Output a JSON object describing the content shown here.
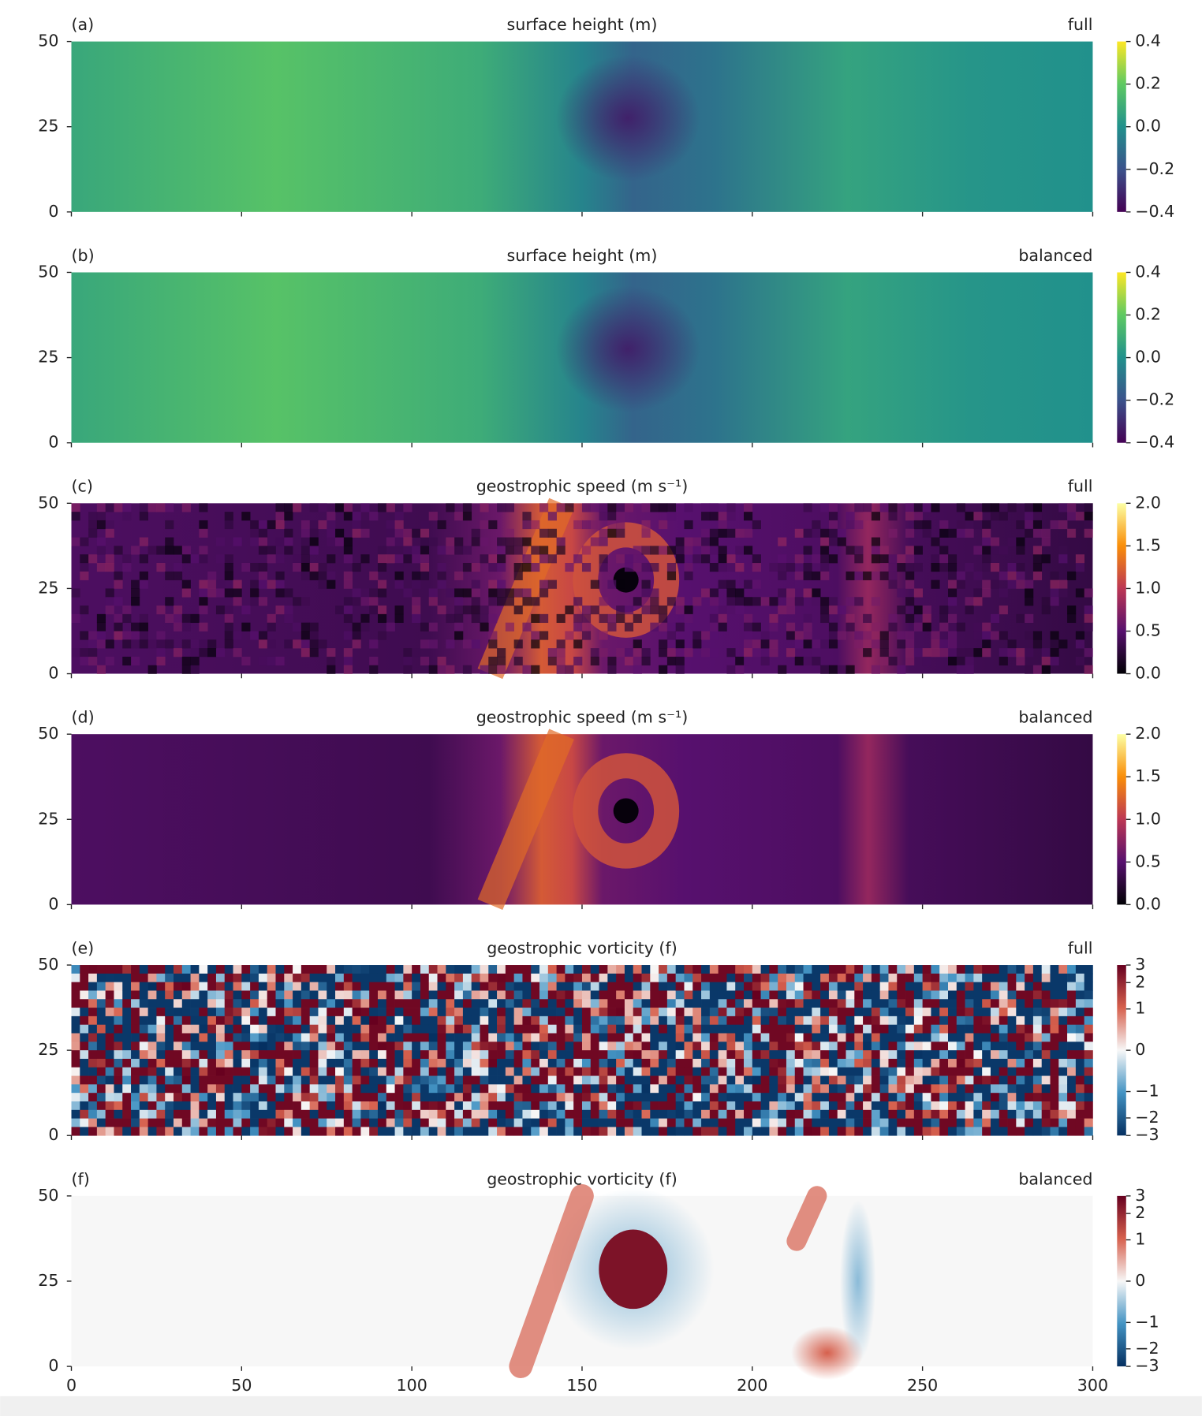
{
  "chart_data": [
    {
      "type": "heatmap",
      "panel": "(a)",
      "title": "surface height (m)",
      "variant": "full",
      "colormap": "viridis",
      "ylim": [
        0,
        50
      ],
      "yticks": [
        0,
        25,
        50
      ],
      "clim": [
        -0.4,
        0.4
      ],
      "cticks": [
        {
          "value": -0.4,
          "label": "−0.4"
        },
        {
          "value": -0.2,
          "label": "−0.2"
        },
        {
          "value": 0,
          "label": "0.0"
        },
        0.2,
        0.4
      ]
    },
    {
      "type": "heatmap",
      "panel": "(b)",
      "title": "surface height (m)",
      "variant": "balanced",
      "colormap": "viridis",
      "ylim": [
        0,
        50
      ],
      "yticks": [
        0,
        25,
        50
      ],
      "clim": [
        -0.4,
        0.4
      ],
      "cticks": [
        {
          "value": -0.4,
          "label": "−0.4"
        },
        {
          "value": -0.2,
          "label": "−0.2"
        },
        {
          "value": 0,
          "label": "0.0"
        },
        0.2,
        0.4
      ]
    },
    {
      "type": "heatmap",
      "panel": "(c)",
      "title": "geostrophic speed (m s⁻¹)",
      "variant": "full",
      "colormap": "inferno",
      "ylim": [
        0,
        50
      ],
      "yticks": [
        0,
        25,
        50
      ],
      "clim": [
        0,
        2
      ],
      "cticks": [
        {
          "value": 0,
          "label": "0.0"
        },
        0.5,
        {
          "value": 1,
          "label": "1.0"
        },
        1.5,
        {
          "value": 2,
          "label": "2.0"
        }
      ]
    },
    {
      "type": "heatmap",
      "panel": "(d)",
      "title": "geostrophic speed (m s⁻¹)",
      "variant": "balanced",
      "colormap": "inferno",
      "ylim": [
        0,
        50
      ],
      "yticks": [
        0,
        25,
        50
      ],
      "clim": [
        0,
        2
      ],
      "cticks": [
        {
          "value": 0,
          "label": "0.0"
        },
        0.5,
        {
          "value": 1,
          "label": "1.0"
        },
        1.5,
        {
          "value": 2,
          "label": "2.0"
        }
      ]
    },
    {
      "type": "heatmap",
      "panel": "(e)",
      "title": "geostrophic vorticity (f)",
      "variant": "full",
      "colormap": "RdBu_r",
      "ylim": [
        0,
        50
      ],
      "yticks": [
        0,
        25,
        50
      ],
      "clim": [
        -3,
        3
      ],
      "cscale": "asinh",
      "cticks": [
        {
          "value": -3,
          "label": "−3"
        },
        {
          "value": -2,
          "label": "−2"
        },
        {
          "value": -1,
          "label": "−1"
        },
        0,
        1,
        2,
        3
      ]
    },
    {
      "type": "heatmap",
      "panel": "(f)",
      "title": "geostrophic vorticity (f)",
      "variant": "balanced",
      "colormap": "RdBu_r",
      "ylim": [
        0,
        50
      ],
      "yticks": [
        0,
        25,
        50
      ],
      "clim": [
        -3,
        3
      ],
      "cscale": "asinh",
      "cticks": [
        {
          "value": -3,
          "label": "−3"
        },
        {
          "value": -2,
          "label": "−2"
        },
        {
          "value": -1,
          "label": "−1"
        },
        0,
        1,
        2,
        3
      ],
      "xlim": [
        0,
        300
      ],
      "xticks": [
        0,
        50,
        100,
        150,
        200,
        250,
        300
      ]
    }
  ]
}
